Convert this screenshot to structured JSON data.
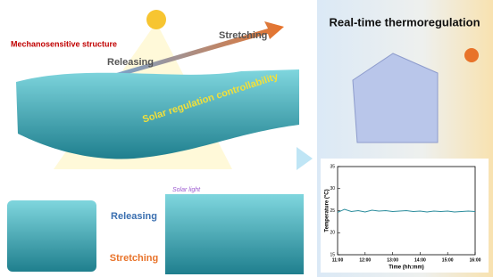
{
  "labels": {
    "mechanosensitive": "Mechanosensitive structure",
    "releasing_top": "Releasing",
    "stretching_top": "Stretching",
    "solar_regulation": "Solar regulation controllability",
    "solar_light": "Solar light",
    "releasing_bottom": "Releasing",
    "stretching_bottom": "Stretching"
  },
  "right_panel": {
    "title": "Real-time thermoregulation"
  },
  "chart_data": {
    "type": "line",
    "x": [
      11,
      11.25,
      11.5,
      11.75,
      12,
      12.25,
      12.5,
      12.75,
      13,
      13.25,
      13.5,
      13.75,
      14,
      14.25,
      14.5,
      14.75,
      15,
      15.25,
      15.5,
      15.75,
      16
    ],
    "series": [
      {
        "color": "#2a8c9c",
        "values": [
          24.6,
          25.3,
          24.8,
          25.0,
          24.7,
          25.1,
          24.9,
          25.0,
          24.8,
          24.9,
          25.0,
          24.8,
          24.9,
          24.7,
          24.9,
          24.8,
          24.9,
          24.7,
          24.8,
          24.9,
          24.8
        ]
      }
    ],
    "xlabel": "Time (hh:mm)",
    "ylabel": "Temperature (°C)",
    "xlim": [
      11,
      16
    ],
    "ylim": [
      15,
      35
    ],
    "xticks": [
      {
        "value": 11,
        "label": "11:00"
      },
      {
        "value": 12,
        "label": "12:00"
      },
      {
        "value": 13,
        "label": "13:00"
      },
      {
        "value": 14,
        "label": "14:00"
      },
      {
        "value": 15,
        "label": "15:00"
      },
      {
        "value": 16,
        "label": "16:00"
      }
    ],
    "yticks": [
      15,
      20,
      25,
      30,
      35
    ]
  }
}
